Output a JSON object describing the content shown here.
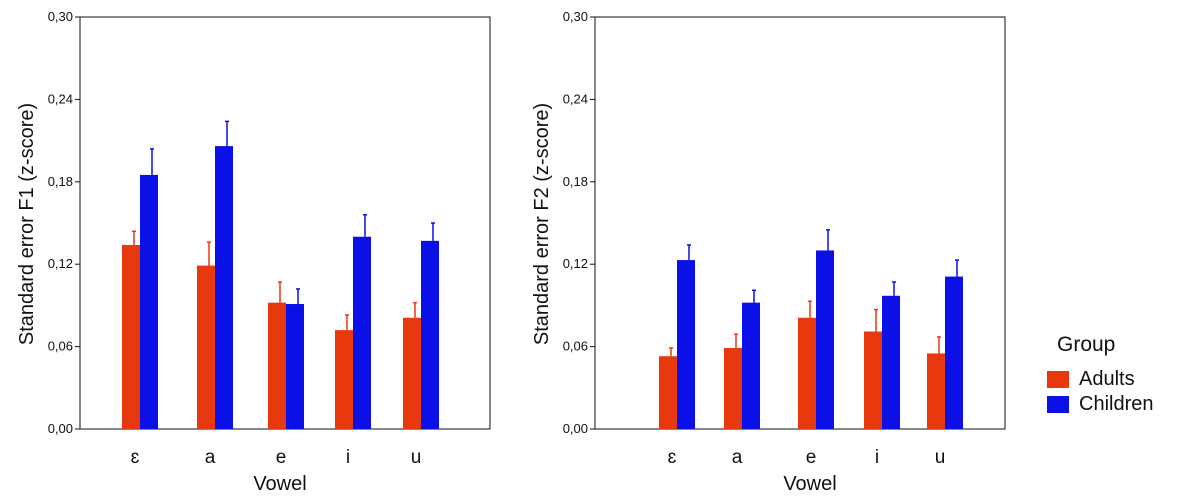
{
  "chart_data": [
    {
      "type": "bar",
      "xlabel": "Vowel",
      "ylabel": "Standard error F1 (z-score)",
      "ylim": [
        0,
        0.3
      ],
      "yticks": [
        "0,00",
        "0,06",
        "0,12",
        "0,18",
        "0,24",
        "0,30"
      ],
      "categories": [
        "ɛ",
        "a",
        "e",
        "i",
        "u"
      ],
      "series": [
        {
          "name": "Adults",
          "color": "#e8380d",
          "values": [
            0.134,
            0.119,
            0.092,
            0.072,
            0.081
          ],
          "error": [
            0.01,
            0.017,
            0.015,
            0.011,
            0.011
          ]
        },
        {
          "name": "Children",
          "color": "#0b10e6",
          "values": [
            0.185,
            0.206,
            0.091,
            0.14,
            0.137
          ],
          "error": [
            0.019,
            0.018,
            0.011,
            0.016,
            0.013
          ]
        }
      ]
    },
    {
      "type": "bar",
      "xlabel": "Vowel",
      "ylabel": "Standard error F2 (z-score)",
      "ylim": [
        0,
        0.3
      ],
      "yticks": [
        "0,00",
        "0,06",
        "0,12",
        "0,18",
        "0,24",
        "0,30"
      ],
      "categories": [
        "ɛ",
        "a",
        "e",
        "i",
        "u"
      ],
      "series": [
        {
          "name": "Adults",
          "color": "#e8380d",
          "values": [
            0.053,
            0.059,
            0.081,
            0.071,
            0.055
          ],
          "error": [
            0.006,
            0.01,
            0.012,
            0.016,
            0.012
          ]
        },
        {
          "name": "Children",
          "color": "#0b10e6",
          "values": [
            0.123,
            0.092,
            0.13,
            0.097,
            0.111
          ],
          "error": [
            0.011,
            0.009,
            0.015,
            0.01,
            0.012
          ]
        }
      ]
    }
  ],
  "legend": {
    "title": "Group",
    "items": [
      {
        "label": "Adults",
        "color": "#e8380d"
      },
      {
        "label": "Children",
        "color": "#0b10e6"
      }
    ]
  }
}
